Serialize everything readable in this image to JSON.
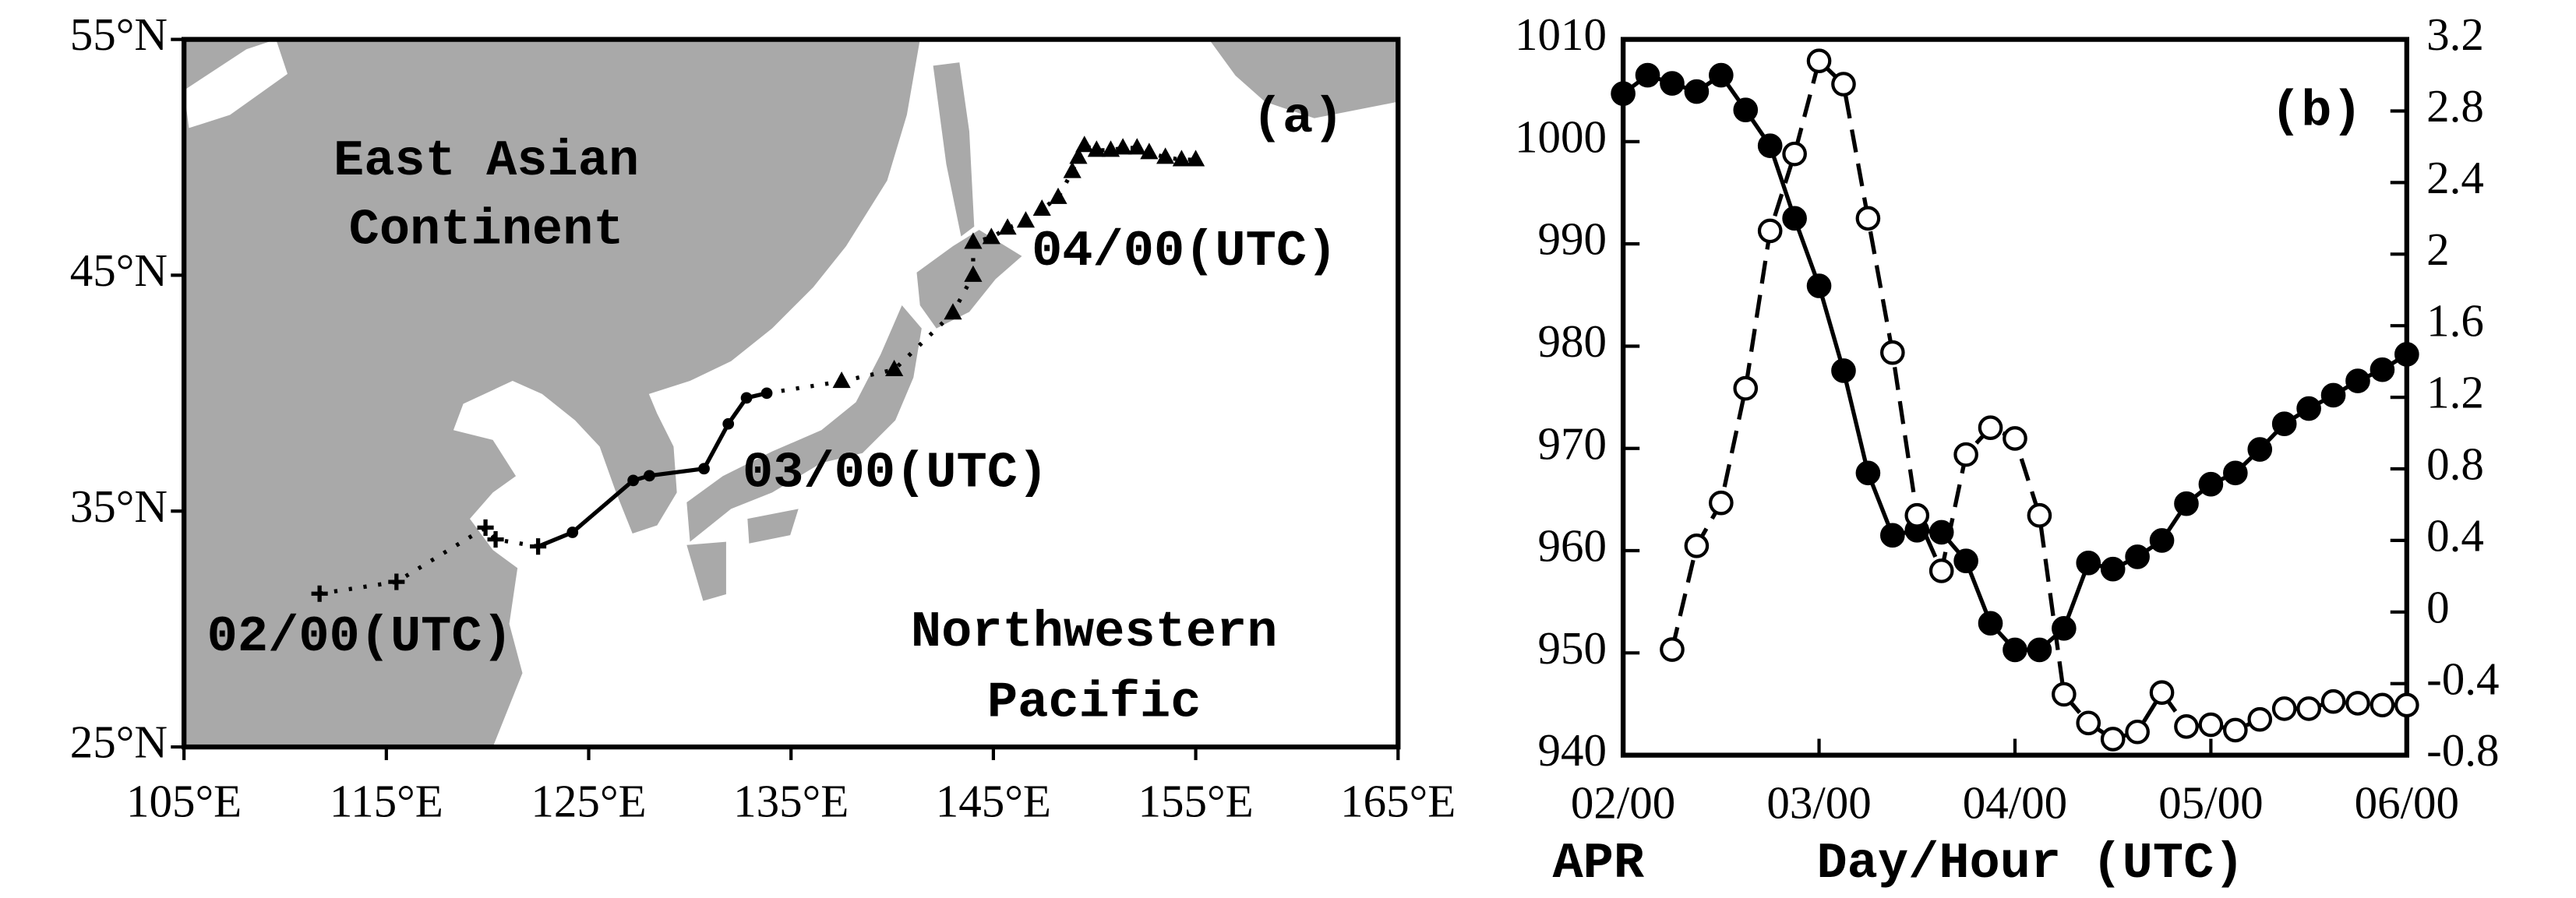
{
  "chart_data": [
    {
      "type": "map",
      "panel_label": "(a)",
      "land_label": [
        "East Asian",
        "Continent"
      ],
      "ocean_label": [
        "Northwestern",
        "Pacific"
      ],
      "annotations": [
        "02/00(UTC)",
        "03/00(UTC)",
        "04/00(UTC)"
      ],
      "xlim": [
        105,
        165
      ],
      "ylim": [
        25,
        55
      ],
      "xticks": [
        {
          "value": 105,
          "label": "105°E"
        },
        {
          "value": 115,
          "label": "115°E"
        },
        {
          "value": 125,
          "label": "125°E"
        },
        {
          "value": 135,
          "label": "135°E"
        },
        {
          "value": 145,
          "label": "145°E"
        },
        {
          "value": 155,
          "label": "155°E"
        },
        {
          "value": 165,
          "label": "165°E"
        }
      ],
      "yticks": [
        {
          "value": 25,
          "label": "25°N"
        },
        {
          "value": 35,
          "label": "35°N"
        },
        {
          "value": 45,
          "label": "45°N"
        },
        {
          "value": 55,
          "label": "55°N"
        }
      ],
      "land_color": "#a9a9a9",
      "series": [
        {
          "color": "#000000",
          "marker": "plus",
          "line_style": "dotted",
          "x": [
            111.7,
            115.5,
            119.9,
            120.4,
            122.5
          ],
          "y": [
            31.5,
            32.0,
            34.3,
            33.8,
            33.5
          ]
        },
        {
          "color": "#000000",
          "marker": "dot",
          "line_style": "solid",
          "x": [
            124.2,
            127.2,
            128.0,
            130.7,
            131.9,
            132.8,
            133.8
          ],
          "y": [
            34.1,
            36.3,
            36.5,
            36.8,
            38.7,
            39.8,
            40.0
          ]
        },
        {
          "color": "#000000",
          "marker": "triangle",
          "line_style": "dotted",
          "x": [
            137.5,
            140.1,
            143.0,
            144.0,
            144.0,
            144.9,
            145.7,
            146.6,
            147.4,
            148.2,
            148.9,
            149.2,
            149.5,
            150.1,
            150.8,
            151.4,
            152.1,
            152.7,
            153.5,
            154.3,
            155.0
          ],
          "y": [
            40.5,
            41.0,
            43.4,
            45.0,
            46.4,
            46.6,
            47.0,
            47.3,
            47.8,
            48.3,
            49.4,
            50.0,
            50.5,
            50.3,
            50.3,
            50.4,
            50.4,
            50.2,
            50.0,
            49.9,
            49.9
          ]
        }
      ]
    },
    {
      "type": "line",
      "panel_label": "(b)",
      "x_label": "Day/Hour (UTC)",
      "x_sublabel": "APR",
      "x": [
        2,
        2.125,
        2.25,
        2.375,
        2.5,
        2.625,
        2.75,
        2.875,
        3,
        3.125,
        3.25,
        3.375,
        3.5,
        3.625,
        3.75,
        3.875,
        4,
        4.125,
        4.25,
        4.375,
        4.5,
        4.625,
        4.75,
        4.875,
        5,
        5.125,
        5.25,
        5.375,
        5.5,
        5.625,
        5.75,
        5.875,
        6
      ],
      "xlim": [
        2,
        6
      ],
      "xticks": [
        {
          "value": 2,
          "label": "02/00"
        },
        {
          "value": 3,
          "label": "03/00"
        },
        {
          "value": 4,
          "label": "04/00"
        },
        {
          "value": 5,
          "label": "05/00"
        },
        {
          "value": 6,
          "label": "06/00"
        }
      ],
      "ylim": [
        940,
        1010
      ],
      "yticks": [
        940,
        950,
        960,
        970,
        980,
        990,
        1000,
        1010
      ],
      "y2lim": [
        -0.8,
        3.2
      ],
      "y2ticks": [
        -0.8,
        -0.4,
        0,
        0.4,
        0.8,
        1.2,
        1.6,
        2,
        2.4,
        2.8,
        3.2
      ],
      "series": [
        {
          "color": "#000000",
          "marker": "filled_circle",
          "line_style": "solid",
          "axis": "y",
          "values": [
            1004.7,
            1006.5,
            1005.7,
            1004.9,
            1006.5,
            1003.1,
            999.6,
            992.5,
            985.9,
            977.6,
            967.6,
            961.5,
            962.0,
            961.8,
            959.0,
            952.9,
            950.3,
            950.3,
            952.4,
            958.8,
            958.2,
            959.4,
            961.0,
            964.6,
            966.5,
            967.6,
            969.9,
            972.4,
            973.9,
            975.2,
            976.6,
            977.7,
            979.2
          ]
        },
        {
          "color": "#000000",
          "marker": "open_circle",
          "line_style": "dashed",
          "axis": "y2",
          "values": [
            null,
            null,
            -0.21,
            0.37,
            0.61,
            1.25,
            2.13,
            2.56,
            3.08,
            2.95,
            2.2,
            1.45,
            0.54,
            0.23,
            0.88,
            1.03,
            0.97,
            0.54,
            -0.46,
            -0.62,
            -0.71,
            -0.67,
            -0.45,
            -0.64,
            -0.63,
            -0.66,
            -0.6,
            -0.54,
            -0.54,
            -0.5,
            -0.51,
            -0.52,
            -0.52
          ]
        }
      ]
    }
  ]
}
